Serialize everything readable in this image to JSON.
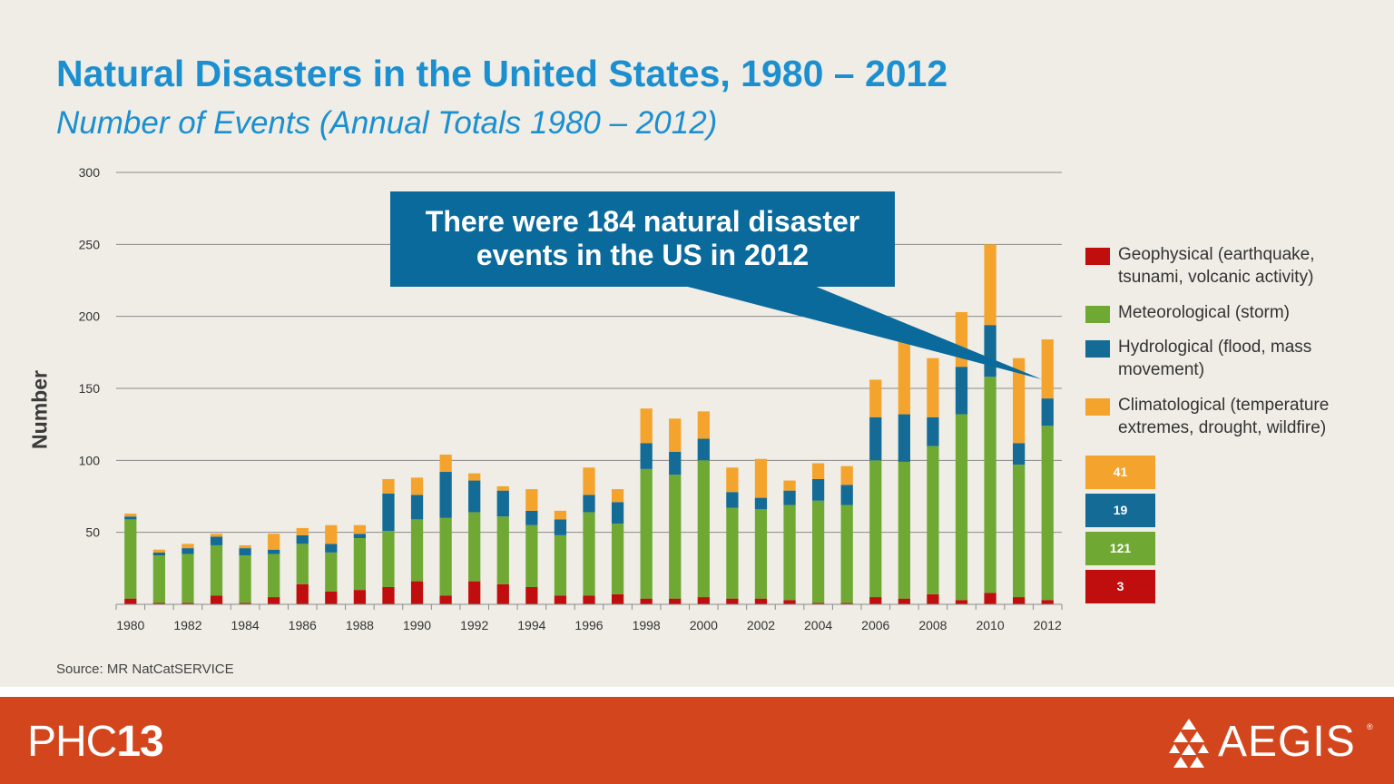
{
  "header": {
    "title": "Natural Disasters in the United States, 1980 – 2012",
    "subtitle": "Number of Events (Annual Totals 1980 – 2012)"
  },
  "callout": {
    "text": "There were 184 natural disaster events in the US in 2012"
  },
  "legend": [
    {
      "label": "Geophysical (earthquake, tsunami, volcanic activity)",
      "color": "#c00d0d"
    },
    {
      "label": "Meteorological (storm)",
      "color": "#6fa934"
    },
    {
      "label": "Hydrological (flood, mass movement)",
      "color": "#136b96"
    },
    {
      "label": "Climatological (temperature extremes, drought, wildfire)",
      "color": "#f4a42c"
    }
  ],
  "value_boxes": {
    "climatological": "41",
    "hydrological": "19",
    "meteorological": "121",
    "geophysical": "3"
  },
  "source": "Source: MR NatCatSERVICE",
  "footer": {
    "left_logo_light": "PHC",
    "left_logo_bold": "13",
    "right_logo": "AEGIS",
    "right_logo_mark": "®"
  },
  "chart_data": {
    "type": "bar",
    "stacked": true,
    "ylabel": "Number",
    "ylim": [
      0,
      300
    ],
    "yticks": [
      50,
      100,
      150,
      200,
      250,
      300
    ],
    "grid": true,
    "legend_position": "right",
    "categories": [
      "1980",
      "1981",
      "1982",
      "1983",
      "1984",
      "1985",
      "1986",
      "1987",
      "1988",
      "1989",
      "1990",
      "1991",
      "1992",
      "1993",
      "1994",
      "1995",
      "1996",
      "1997",
      "1998",
      "1999",
      "2000",
      "2001",
      "2002",
      "2003",
      "2004",
      "2005",
      "2006",
      "2007",
      "2008",
      "2009",
      "2010",
      "2011",
      "2012"
    ],
    "xtick_labels": [
      "1980",
      "",
      "1982",
      "",
      "1984",
      "",
      "1986",
      "",
      "1988",
      "",
      "1990",
      "",
      "1992",
      "",
      "1994",
      "",
      "1996",
      "",
      "1998",
      "",
      "2000",
      "",
      "2002",
      "",
      "2004",
      "",
      "2006",
      "",
      "2008",
      "",
      "2010",
      "",
      "2012"
    ],
    "series": [
      {
        "name": "Geophysical (earthquake, tsunami, volcanic activity)",
        "color": "#c00d0d",
        "values": [
          4,
          1,
          1,
          6,
          1,
          5,
          14,
          9,
          10,
          12,
          16,
          6,
          16,
          14,
          12,
          6,
          6,
          7,
          4,
          4,
          5,
          4,
          4,
          3,
          1,
          1,
          5,
          4,
          7,
          3,
          8,
          5,
          3
        ]
      },
      {
        "name": "Meteorological (storm)",
        "color": "#6fa934",
        "values": [
          55,
          33,
          34,
          35,
          33,
          30,
          28,
          27,
          36,
          39,
          43,
          54,
          48,
          47,
          43,
          42,
          58,
          49,
          90,
          86,
          95,
          63,
          62,
          66,
          71,
          68,
          95,
          95,
          103,
          129,
          150,
          92,
          121
        ]
      },
      {
        "name": "Hydrological (flood, mass movement)",
        "color": "#136b96",
        "values": [
          2,
          2,
          4,
          6,
          5,
          3,
          6,
          6,
          3,
          26,
          17,
          32,
          22,
          18,
          10,
          11,
          12,
          15,
          18,
          16,
          15,
          11,
          8,
          10,
          15,
          14,
          30,
          33,
          20,
          33,
          36,
          15,
          19
        ]
      },
      {
        "name": "Climatological (temperature extremes, drought, wildfire)",
        "color": "#f4a42c",
        "values": [
          2,
          2,
          3,
          2,
          2,
          11,
          5,
          13,
          6,
          10,
          12,
          12,
          5,
          3,
          15,
          6,
          19,
          9,
          24,
          23,
          19,
          17,
          27,
          7,
          11,
          13,
          26,
          51,
          41,
          38,
          56,
          59,
          41
        ]
      }
    ],
    "annotation": "There were 184 natural disaster events in the US in 2012"
  }
}
